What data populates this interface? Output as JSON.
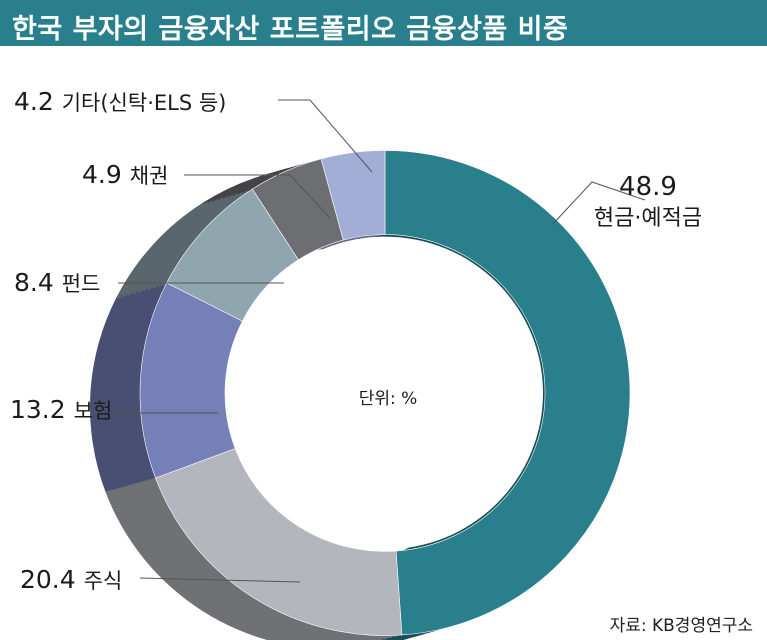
{
  "title": "한국 부자의 금융자산 포트폴리오 금융상품 비중",
  "unit_label": "단위: %",
  "source": "자료: KB경영연구소",
  "chart_data": {
    "type": "pie",
    "title": "한국 부자의 금융자산 포트폴리오 금융상품 비중",
    "unit": "%",
    "slices": [
      {
        "label": "현금·예적금",
        "value": 48.9,
        "value_text": "48.9",
        "color": "#2a7f8c"
      },
      {
        "label": "주식",
        "value": 20.4,
        "value_text": "20.4",
        "color": "#b3b6bc"
      },
      {
        "label": "보험",
        "value": 13.2,
        "value_text": "13.2",
        "color": "#7580b8"
      },
      {
        "label": "펀드",
        "value": 8.4,
        "value_text": "8.4",
        "color": "#8fa6ae"
      },
      {
        "label": "채권",
        "value": 4.9,
        "value_text": "4.9",
        "color": "#6d6e72"
      },
      {
        "label": "기타(신탁·ELS 등)",
        "value": 4.2,
        "value_text": "4.2",
        "color": "#a3aed6"
      }
    ]
  }
}
